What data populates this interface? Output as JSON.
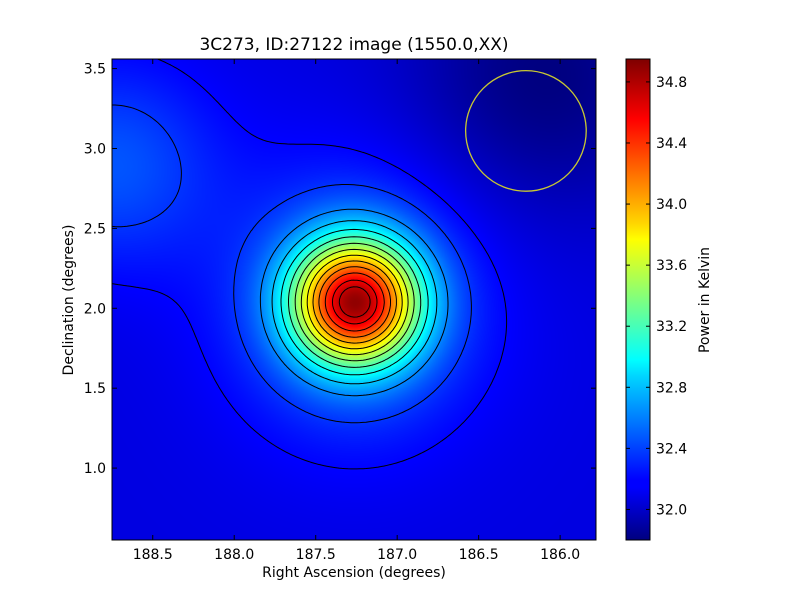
{
  "chart_data": {
    "type": "heatmap",
    "title": "3C273, ID:27122 image (1550.0,XX)",
    "xlabel": "Right Ascension (degrees)",
    "ylabel": "Declination (degrees)",
    "colorbar_label": "Power in Kelvin",
    "x_range": [
      188.75,
      185.78
    ],
    "y_range": [
      0.55,
      3.56
    ],
    "x_ticks": [
      "188.5",
      "188.0",
      "187.5",
      "187.0",
      "186.5",
      "186.0"
    ],
    "x_tick_values": [
      188.5,
      188.0,
      187.5,
      187.0,
      186.5,
      186.0
    ],
    "y_ticks": [
      "1.0",
      "1.5",
      "2.0",
      "2.5",
      "3.0",
      "3.5"
    ],
    "y_tick_values": [
      1.0,
      1.5,
      2.0,
      2.5,
      3.0,
      3.5
    ],
    "colorbar_range": [
      31.8,
      34.95
    ],
    "colorbar_ticks": [
      "32.0",
      "32.4",
      "32.8",
      "33.2",
      "33.6",
      "34.0",
      "34.4",
      "34.8"
    ],
    "colorbar_tick_values": [
      32.0,
      32.4,
      32.8,
      33.2,
      33.6,
      34.0,
      34.4,
      34.8
    ],
    "colormap": "jet",
    "peak": {
      "ra": 187.26,
      "dec": 2.04,
      "value": 34.9
    },
    "background_value": 32.1,
    "beam_circle": {
      "ra": 186.21,
      "dec": 3.11,
      "radius_deg": 0.37,
      "color": "#c8c832"
    },
    "contour_levels": [
      32.2,
      32.35,
      32.6,
      32.8,
      33.0,
      33.2,
      33.4,
      33.6,
      33.8,
      34.0,
      34.2,
      34.4,
      34.6,
      34.75
    ]
  }
}
